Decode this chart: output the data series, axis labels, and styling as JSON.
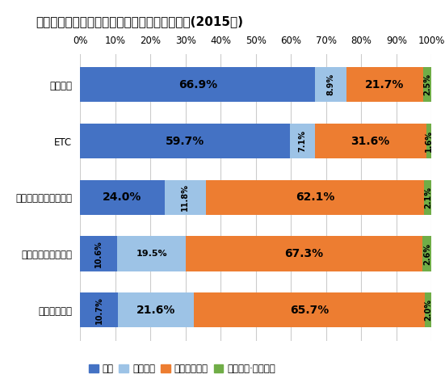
{
  "title": "主に運転している車に搭載している機器・機能(2015年)",
  "categories": [
    "カーナビ",
    "ETC",
    "アイドリングストップ",
    "ドライブレコーダー",
    "衝突防止装置"
  ],
  "series": {
    "搭載": [
      66.9,
      59.7,
      24.0,
      10.6,
      10.7
    ],
    "搭載予定": [
      8.9,
      7.1,
      11.8,
      19.5,
      21.6
    ],
    "搭載予定無し": [
      21.7,
      31.6,
      62.1,
      67.3,
      65.7
    ],
    "以前搭載·今は無し": [
      2.5,
      1.6,
      2.1,
      2.6,
      2.0
    ]
  },
  "colors": {
    "搭載": "#4472C4",
    "搭載予定": "#9DC3E6",
    "搭載予定無し": "#ED7D31",
    "以前搭載·今は無し": "#70AD47"
  },
  "label_texts": {
    "搭載": [
      "66.9%",
      "59.7%",
      "24.0%",
      "10.6%",
      "10.7%"
    ],
    "搭載予定": [
      "8.9%",
      "7.1%",
      "11.8%",
      "19.5%",
      "21.6%"
    ],
    "搭載予定無し": [
      "21.7%",
      "31.6%",
      "62.1%",
      "67.3%",
      "65.7%"
    ],
    "以前搭載·今は無し": [
      "2.5%",
      "1.6%",
      "2.1%",
      "2.6%",
      "2.0%"
    ]
  },
  "rotate_threshold": 12,
  "background_color": "#FFFFFF",
  "title_fontsize": 11,
  "tick_fontsize": 8.5,
  "bar_label_fontsize_large": 10,
  "bar_label_fontsize_small": 8,
  "bar_label_fontsize_tiny": 7,
  "legend_fontsize": 8.5
}
